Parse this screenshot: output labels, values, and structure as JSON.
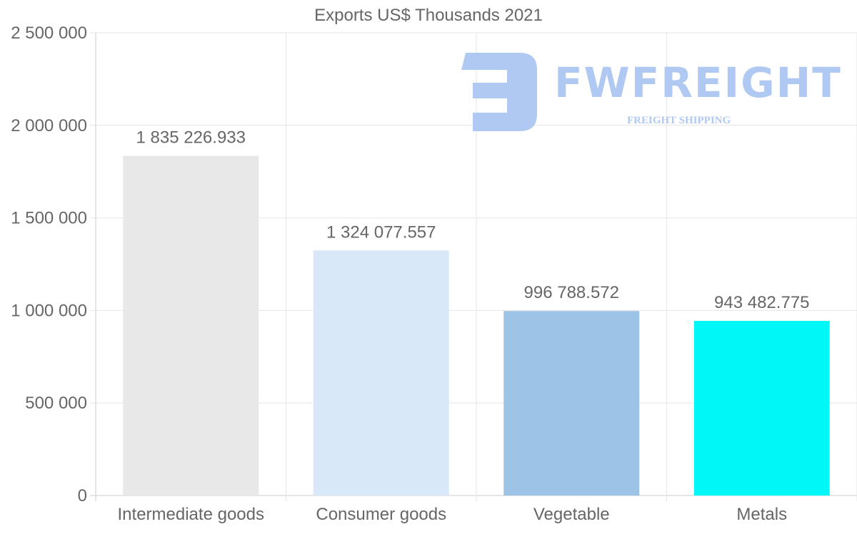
{
  "chart_data": {
    "type": "bar",
    "title": "Exports US$ Thousands 2021",
    "categories": [
      "Intermediate goods",
      "Consumer goods",
      "Vegetable",
      "Metals"
    ],
    "values": [
      1835226.933,
      1324077.557,
      996788.572,
      943482.775
    ],
    "data_labels": [
      "1 835 226.933",
      "1 324 077.557",
      "996 788.572",
      "943 482.775"
    ],
    "colors": [
      "#e8e8e8",
      "#d9e8f9",
      "#9dc3e6",
      "#00f7f7"
    ],
    "ylim": [
      0,
      2500000
    ],
    "yticks": [
      0,
      500000,
      1000000,
      1500000,
      2000000,
      2500000
    ],
    "ytick_labels": [
      "0",
      "500 000",
      "1 000 000",
      "1 500 000",
      "2 000 000",
      "2 500 000"
    ],
    "xlabel": "",
    "ylabel": "",
    "grid": true,
    "legend": "none"
  },
  "watermark": {
    "name": "FWFREIGHT",
    "tagline": "FREIGHT SHIPPING"
  }
}
